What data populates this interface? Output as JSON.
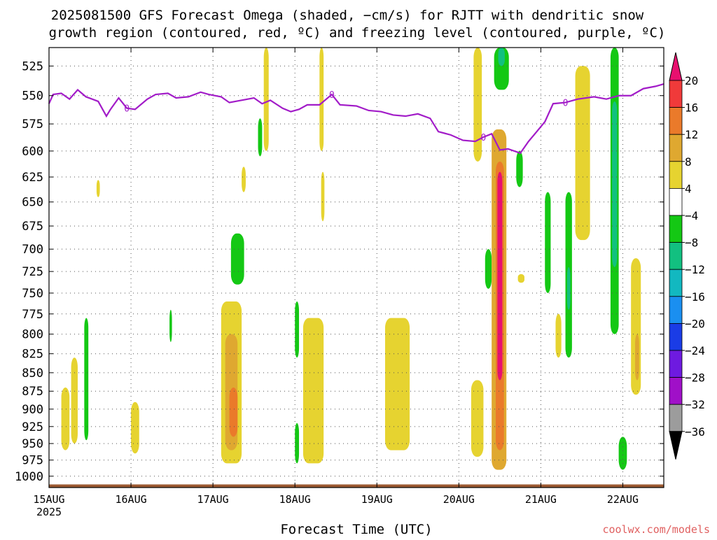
{
  "chart_data": {
    "type": "heatmap",
    "title_lines": [
      "2025081500 GFS Forecast Omega (shaded, −cm/s) for RJTT with dendritic snow",
      "growth region (contoured, red, ºC) and freezing level (contoured, purple, ºC)"
    ],
    "xlabel": "Forecast Time (UTC)",
    "x_ticks": [
      "15AUG",
      "16AUG",
      "17AUG",
      "18AUG",
      "19AUG",
      "20AUG",
      "21AUG",
      "22AUG"
    ],
    "x_year": "2025",
    "x_range_days": [
      0,
      7.5
    ],
    "y_ticks": [
      525,
      550,
      575,
      600,
      625,
      650,
      675,
      700,
      725,
      750,
      775,
      800,
      825,
      850,
      875,
      900,
      925,
      950,
      975,
      1000
    ],
    "y_range_hpa": [
      510,
      1018
    ],
    "y_scale": "log (pressure)",
    "grid": true,
    "colorbar": {
      "labels": [
        "20",
        "16",
        "12",
        "8",
        "4",
        "−4",
        "−8",
        "−12",
        "−16",
        "−20",
        "−24",
        "−28",
        "−32",
        "−36"
      ],
      "colors": [
        "#e8106f",
        "#f03a3a",
        "#ea7a2a",
        "#dfa830",
        "#e6d330",
        "#ffffff",
        "#14c814",
        "#12c080",
        "#12b8c0",
        "#1a8ff0",
        "#1a3ce6",
        "#6e1ae0",
        "#a010c8",
        "#9c9c9c",
        "#000000"
      ],
      "bins_upper_to_lower": [
        "20+",
        "16-20",
        "12-16",
        "8-12",
        "4-8",
        "-4-4",
        "-8--4",
        "-12--8",
        "-16--12",
        "-20--16",
        "-24--20",
        "-28--24",
        "-32--28",
        "-36--32",
        "<-36"
      ]
    },
    "freezing_level": {
      "label": "0",
      "color": "#a21cc8",
      "points": [
        [
          0,
          557
        ],
        [
          0.05,
          549
        ],
        [
          0.15,
          548
        ],
        [
          0.25,
          553
        ],
        [
          0.35,
          545
        ],
        [
          0.45,
          551
        ],
        [
          0.6,
          555
        ],
        [
          0.7,
          568
        ],
        [
          0.75,
          562
        ],
        [
          0.85,
          552
        ],
        [
          0.95,
          561
        ],
        [
          1.05,
          562
        ],
        [
          1.2,
          553
        ],
        [
          1.3,
          549
        ],
        [
          1.45,
          548
        ],
        [
          1.55,
          552
        ],
        [
          1.7,
          551
        ],
        [
          1.85,
          547
        ],
        [
          1.95,
          549
        ],
        [
          2.1,
          551
        ],
        [
          2.2,
          556
        ],
        [
          2.35,
          554
        ],
        [
          2.5,
          552
        ],
        [
          2.6,
          557
        ],
        [
          2.7,
          554
        ],
        [
          2.85,
          561
        ],
        [
          2.95,
          564
        ],
        [
          3.05,
          562
        ],
        [
          3.15,
          558
        ],
        [
          3.3,
          558
        ],
        [
          3.45,
          549
        ],
        [
          3.55,
          558
        ],
        [
          3.75,
          559
        ],
        [
          3.9,
          563
        ],
        [
          4.05,
          564
        ],
        [
          4.2,
          567
        ],
        [
          4.35,
          568
        ],
        [
          4.5,
          566
        ],
        [
          4.65,
          570
        ],
        [
          4.75,
          582
        ],
        [
          4.9,
          585
        ],
        [
          5.05,
          590
        ],
        [
          5.2,
          591
        ],
        [
          5.3,
          587
        ],
        [
          5.4,
          584
        ],
        [
          5.5,
          599
        ],
        [
          5.6,
          598
        ],
        [
          5.75,
          602
        ],
        [
          5.85,
          591
        ],
        [
          5.95,
          582
        ],
        [
          6.05,
          573
        ],
        [
          6.15,
          557
        ],
        [
          6.3,
          556
        ],
        [
          6.45,
          553
        ],
        [
          6.65,
          551
        ],
        [
          6.8,
          553
        ],
        [
          6.95,
          550
        ],
        [
          7.1,
          550
        ],
        [
          7.25,
          544
        ],
        [
          7.4,
          542
        ],
        [
          7.5,
          540
        ]
      ]
    },
    "omega_regions": [
      {
        "x": [
          0.15,
          0.25
        ],
        "p": [
          870,
          960
        ],
        "bin": "4-8"
      },
      {
        "x": [
          0.27,
          0.35
        ],
        "p": [
          830,
          950
        ],
        "bin": "4-8"
      },
      {
        "x": [
          0.43,
          0.48
        ],
        "p": [
          780,
          945
        ],
        "bin": "-8--4"
      },
      {
        "x": [
          0.58,
          0.62
        ],
        "p": [
          628,
          645
        ],
        "bin": "4-8"
      },
      {
        "x": [
          1.0,
          1.1
        ],
        "p": [
          890,
          965
        ],
        "bin": "4-8"
      },
      {
        "x": [
          1.47,
          1.5
        ],
        "p": [
          770,
          810
        ],
        "bin": "-8--4"
      },
      {
        "x": [
          2.1,
          2.35
        ],
        "p": [
          760,
          980
        ],
        "bin": "4-8"
      },
      {
        "x": [
          2.15,
          2.3
        ],
        "p": [
          800,
          960
        ],
        "bin": "8-12"
      },
      {
        "x": [
          2.2,
          2.3
        ],
        "p": [
          870,
          940
        ],
        "bin": "12-16"
      },
      {
        "x": [
          2.22,
          2.38
        ],
        "p": [
          683,
          740
        ],
        "bin": "-8--4"
      },
      {
        "x": [
          2.35,
          2.4
        ],
        "p": [
          615,
          640
        ],
        "bin": "4-8"
      },
      {
        "x": [
          2.62,
          2.68
        ],
        "p": [
          510,
          600
        ],
        "bin": "4-8"
      },
      {
        "x": [
          2.55,
          2.6
        ],
        "p": [
          570,
          605
        ],
        "bin": "-8--4"
      },
      {
        "x": [
          3.0,
          3.05
        ],
        "p": [
          760,
          830
        ],
        "bin": "-8--4"
      },
      {
        "x": [
          3.0,
          3.05
        ],
        "p": [
          920,
          980
        ],
        "bin": "-8--4"
      },
      {
        "x": [
          3.1,
          3.35
        ],
        "p": [
          780,
          980
        ],
        "bin": "4-8"
      },
      {
        "x": [
          3.3,
          3.35
        ],
        "p": [
          510,
          600
        ],
        "bin": "4-8"
      },
      {
        "x": [
          3.32,
          3.36
        ],
        "p": [
          620,
          670
        ],
        "bin": "4-8"
      },
      {
        "x": [
          4.1,
          4.4
        ],
        "p": [
          780,
          960
        ],
        "bin": "4-8"
      },
      {
        "x": [
          5.15,
          5.3
        ],
        "p": [
          860,
          970
        ],
        "bin": "4-8"
      },
      {
        "x": [
          5.18,
          5.28
        ],
        "p": [
          510,
          610
        ],
        "bin": "4-8"
      },
      {
        "x": [
          5.32,
          5.4
        ],
        "p": [
          700,
          745
        ],
        "bin": "-8--4"
      },
      {
        "x": [
          5.4,
          5.58
        ],
        "p": [
          580,
          990
        ],
        "bin": "8-12"
      },
      {
        "x": [
          5.45,
          5.55
        ],
        "p": [
          610,
          960
        ],
        "bin": "12-16"
      },
      {
        "x": [
          5.47,
          5.53
        ],
        "p": [
          620,
          860
        ],
        "bin": "20+"
      },
      {
        "x": [
          5.43,
          5.61
        ],
        "p": [
          510,
          545
        ],
        "bin": "-8--4"
      },
      {
        "x": [
          5.48,
          5.56
        ],
        "p": [
          510,
          525
        ],
        "bin": "-12--8"
      },
      {
        "x": [
          5.7,
          5.78
        ],
        "p": [
          600,
          635
        ],
        "bin": "-8--4"
      },
      {
        "x": [
          5.72,
          5.8
        ],
        "p": [
          728,
          738
        ],
        "bin": "4-8"
      },
      {
        "x": [
          6.05,
          6.12
        ],
        "p": [
          640,
          750
        ],
        "bin": "-8--4"
      },
      {
        "x": [
          6.18,
          6.25
        ],
        "p": [
          775,
          830
        ],
        "bin": "4-8"
      },
      {
        "x": [
          6.3,
          6.38
        ],
        "p": [
          640,
          830
        ],
        "bin": "-8--4"
      },
      {
        "x": [
          6.32,
          6.36
        ],
        "p": [
          720,
          770
        ],
        "bin": "-12--8"
      },
      {
        "x": [
          6.42,
          6.6
        ],
        "p": [
          525,
          690
        ],
        "bin": "4-8"
      },
      {
        "x": [
          6.85,
          6.95
        ],
        "p": [
          510,
          800
        ],
        "bin": "-8--4"
      },
      {
        "x": [
          6.87,
          6.93
        ],
        "p": [
          555,
          720
        ],
        "bin": "-12--8"
      },
      {
        "x": [
          6.95,
          7.05
        ],
        "p": [
          940,
          990
        ],
        "bin": "-8--4"
      },
      {
        "x": [
          7.1,
          7.22
        ],
        "p": [
          710,
          880
        ],
        "bin": "4-8"
      },
      {
        "x": [
          7.15,
          7.2
        ],
        "p": [
          800,
          860
        ],
        "bin": "8-12"
      }
    ],
    "terrain": {
      "color": "#9c5a32",
      "surface_pressure": 1013
    }
  },
  "watermark": "coolwx.com/models"
}
